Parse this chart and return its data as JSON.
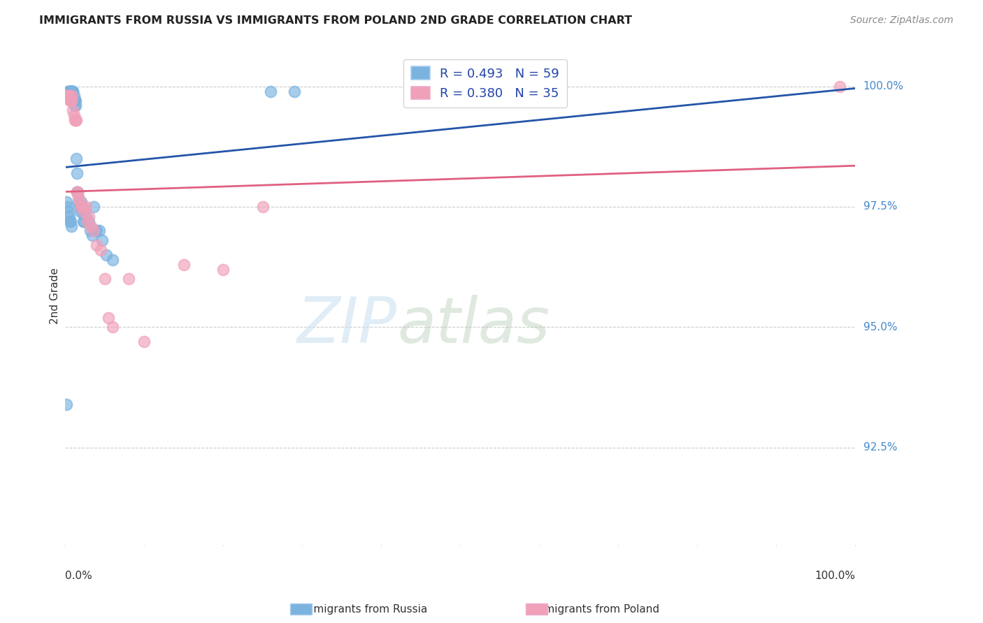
{
  "title": "IMMIGRANTS FROM RUSSIA VS IMMIGRANTS FROM POLAND 2ND GRADE CORRELATION CHART",
  "source": "Source: ZipAtlas.com",
  "ylabel": "2nd Grade",
  "xlim": [
    0.0,
    1.0
  ],
  "ylim": [
    0.905,
    1.008
  ],
  "yticks": [
    0.925,
    0.95,
    0.975,
    1.0
  ],
  "ytick_labels": [
    "92.5%",
    "95.0%",
    "97.5%",
    "100.0%"
  ],
  "russia_color": "#7ab3e0",
  "poland_color": "#f0a0b8",
  "russia_line_color": "#2255aa",
  "poland_line_color": "#e06080",
  "legend_R_russia": "R = 0.493",
  "legend_N_russia": "N = 59",
  "legend_R_poland": "R = 0.380",
  "legend_N_poland": "N = 35",
  "watermark_zip": "ZIP",
  "watermark_atlas": "atlas",
  "russia_x": [
    0.002,
    0.003,
    0.004,
    0.005,
    0.005,
    0.006,
    0.006,
    0.007,
    0.007,
    0.008,
    0.008,
    0.008,
    0.009,
    0.009,
    0.009,
    0.01,
    0.01,
    0.01,
    0.011,
    0.011,
    0.012,
    0.012,
    0.012,
    0.013,
    0.013,
    0.014,
    0.015,
    0.015,
    0.016,
    0.017,
    0.018,
    0.019,
    0.02,
    0.021,
    0.022,
    0.023,
    0.024,
    0.025,
    0.026,
    0.028,
    0.03,
    0.032,
    0.034,
    0.036,
    0.038,
    0.04,
    0.043,
    0.047,
    0.052,
    0.06,
    0.002,
    0.003,
    0.004,
    0.005,
    0.006,
    0.007,
    0.008,
    0.26,
    0.29
  ],
  "russia_y": [
    0.934,
    0.999,
    0.999,
    0.999,
    0.999,
    0.999,
    0.999,
    0.999,
    0.999,
    0.999,
    0.999,
    0.999,
    0.999,
    0.999,
    0.999,
    0.999,
    0.999,
    0.997,
    0.998,
    0.997,
    0.997,
    0.996,
    0.997,
    0.996,
    0.997,
    0.985,
    0.982,
    0.978,
    0.978,
    0.976,
    0.975,
    0.974,
    0.976,
    0.975,
    0.974,
    0.972,
    0.972,
    0.974,
    0.973,
    0.972,
    0.972,
    0.97,
    0.969,
    0.975,
    0.97,
    0.97,
    0.97,
    0.968,
    0.965,
    0.964,
    0.976,
    0.975,
    0.974,
    0.973,
    0.972,
    0.972,
    0.971,
    0.999,
    0.999
  ],
  "poland_x": [
    0.002,
    0.003,
    0.005,
    0.006,
    0.007,
    0.008,
    0.009,
    0.01,
    0.011,
    0.012,
    0.013,
    0.014,
    0.015,
    0.016,
    0.017,
    0.018,
    0.02,
    0.022,
    0.024,
    0.026,
    0.028,
    0.03,
    0.033,
    0.036,
    0.04,
    0.045,
    0.05,
    0.06,
    0.08,
    0.1,
    0.15,
    0.2,
    0.25,
    0.055,
    0.98
  ],
  "poland_y": [
    0.998,
    0.998,
    0.998,
    0.997,
    0.997,
    0.997,
    0.998,
    0.995,
    0.994,
    0.993,
    0.993,
    0.993,
    0.978,
    0.978,
    0.977,
    0.976,
    0.975,
    0.975,
    0.974,
    0.975,
    0.972,
    0.973,
    0.971,
    0.97,
    0.967,
    0.966,
    0.96,
    0.95,
    0.96,
    0.947,
    0.963,
    0.962,
    0.975,
    0.952,
    1.0
  ]
}
